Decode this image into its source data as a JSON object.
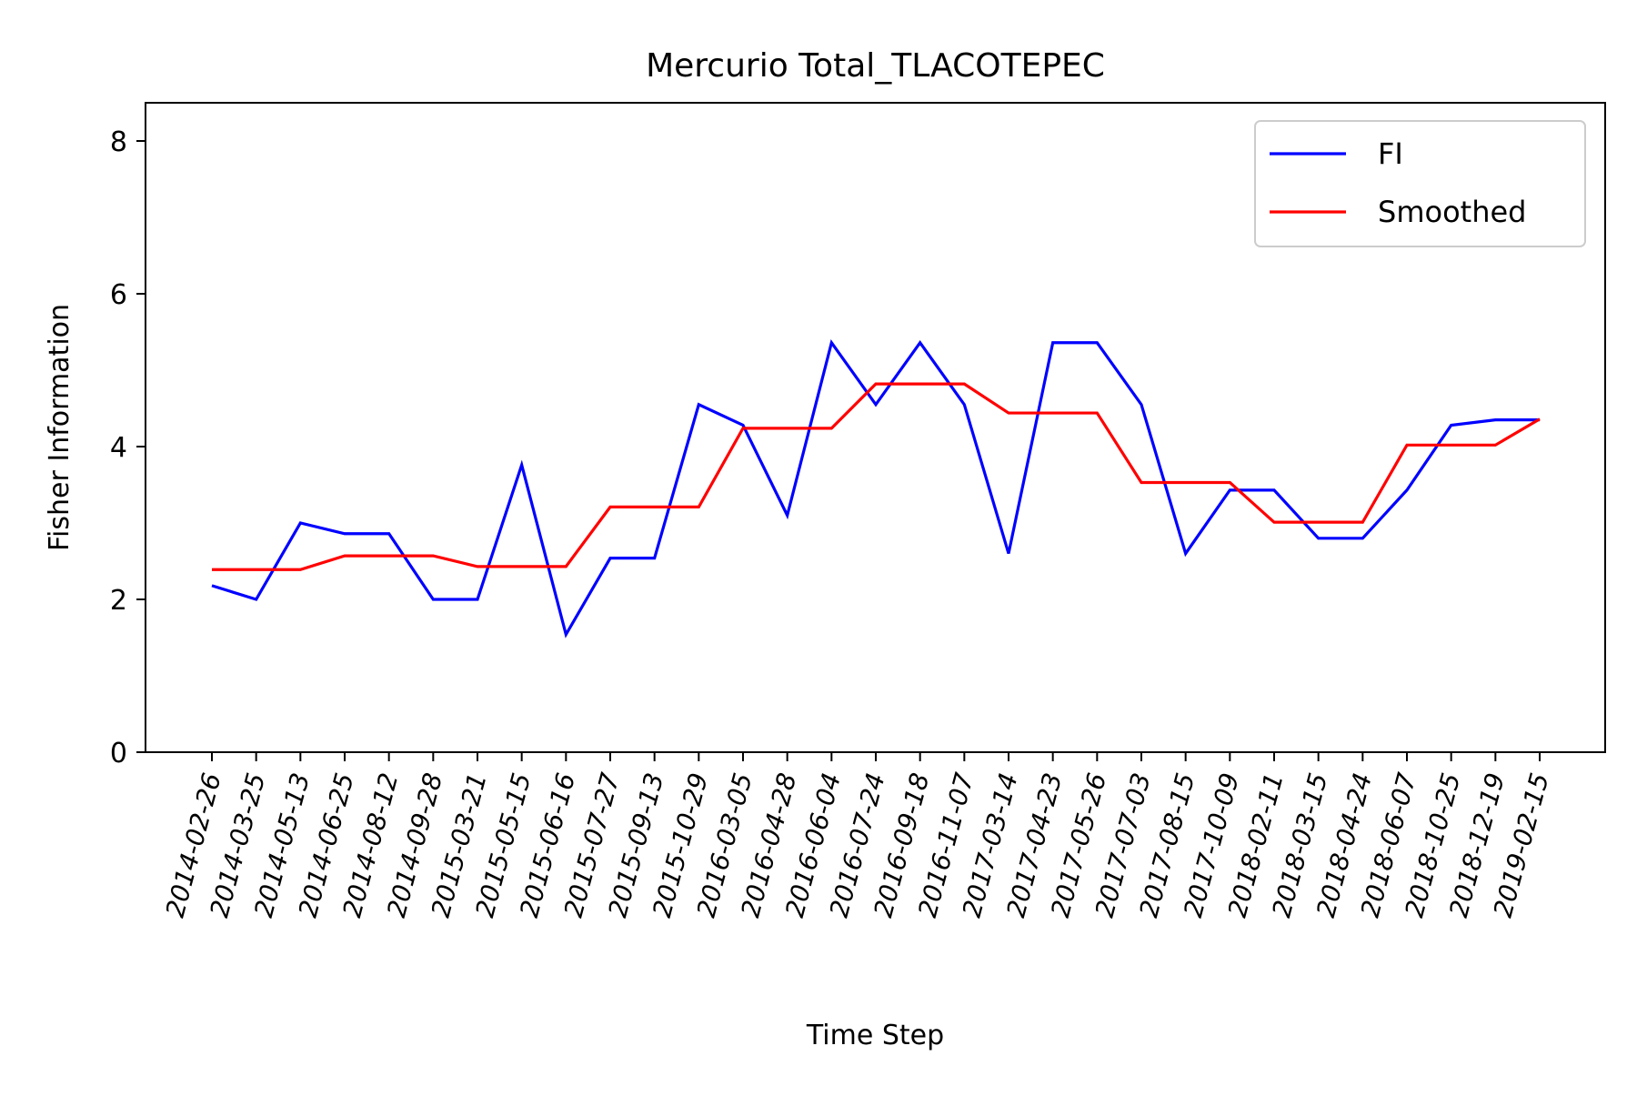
{
  "chart_data": {
    "type": "line",
    "title": "Mercurio Total_TLACOTEPEC",
    "xlabel": "Time Step",
    "ylabel": "Fisher Information",
    "ylim": [
      0,
      8.5
    ],
    "yticks": [
      0,
      2,
      4,
      6,
      8
    ],
    "grid": false,
    "legend_position": "top-right",
    "categories": [
      "2014-02-26",
      "2014-03-25",
      "2014-05-13",
      "2014-06-25",
      "2014-08-12",
      "2014-09-28",
      "2015-03-21",
      "2015-05-15",
      "2015-06-16",
      "2015-07-27",
      "2015-09-13",
      "2015-10-29",
      "2016-03-05",
      "2016-04-28",
      "2016-06-04",
      "2016-07-24",
      "2016-09-18",
      "2016-11-07",
      "2017-03-14",
      "2017-04-23",
      "2017-05-26",
      "2017-07-03",
      "2017-08-15",
      "2017-10-09",
      "2018-02-11",
      "2018-03-15",
      "2018-04-24",
      "2018-06-07",
      "2018-10-25",
      "2018-12-19",
      "2019-02-15"
    ],
    "series": [
      {
        "name": "FI",
        "color": "#0000ff",
        "values": [
          2.18,
          2.0,
          3.0,
          2.86,
          2.86,
          2.0,
          2.0,
          3.76,
          1.54,
          2.54,
          2.54,
          4.55,
          4.28,
          3.1,
          5.36,
          4.55,
          5.36,
          4.55,
          2.6,
          5.36,
          5.36,
          4.55,
          2.6,
          3.43,
          3.43,
          2.8,
          2.8,
          3.43,
          4.28,
          4.35,
          4.35
        ]
      },
      {
        "name": "Smoothed",
        "color": "#ff0000",
        "values": [
          2.39,
          2.39,
          2.39,
          2.57,
          2.57,
          2.57,
          2.43,
          2.43,
          2.43,
          3.21,
          3.21,
          3.21,
          4.24,
          4.24,
          4.24,
          4.82,
          4.82,
          4.82,
          4.44,
          4.44,
          4.44,
          3.53,
          3.53,
          3.53,
          3.01,
          3.01,
          3.01,
          4.02,
          4.02,
          4.02,
          4.36
        ]
      }
    ]
  }
}
